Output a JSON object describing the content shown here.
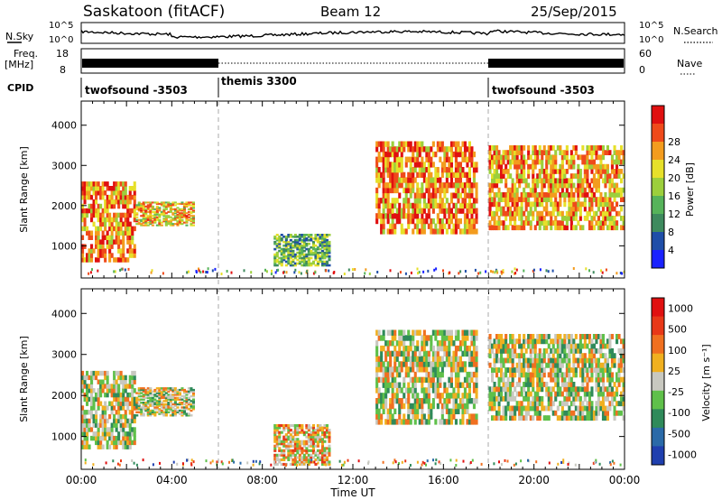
{
  "header": {
    "station": "Saskatoon (fitACF)",
    "beam": "Beam 12",
    "date": "25/Sep/2015"
  },
  "nsky_panel": {
    "left_label": "N.Sky",
    "right_label": "N.Search",
    "y_top": "10^5",
    "y_bottom": "10^0"
  },
  "freq_panel": {
    "left_label_1": "Freq.",
    "left_label_2": "[MHz]",
    "left_ticks": [
      "18",
      "8"
    ],
    "right_label": "Nave",
    "right_ticks": [
      "60",
      "0"
    ]
  },
  "cpid": {
    "label": "CPID",
    "segments": [
      {
        "name": "twofsound -3503",
        "start_hour": 0,
        "end_hour": 6
      },
      {
        "name": "themis 3300",
        "start_hour": 6,
        "end_hour": 18
      },
      {
        "name": "twofsound -3503",
        "start_hour": 18,
        "end_hour": 24
      }
    ]
  },
  "chart_data": [
    {
      "type": "heatmap",
      "title": "",
      "xlabel": "Time UT",
      "ylabel": "Slant Range [km]",
      "xlim": [
        0,
        24
      ],
      "ylim": [
        200,
        4600
      ],
      "xticks": [
        "00:00",
        "04:00",
        "08:00",
        "12:00",
        "16:00",
        "20:00",
        "00:00"
      ],
      "yticks": [
        1000,
        2000,
        3000,
        4000
      ],
      "colorbar": {
        "label": "Power [dB]",
        "ticks": [
          "4",
          "8",
          "12",
          "16",
          "20",
          "24",
          "28"
        ],
        "colors": [
          "#1a22ff",
          "#1f4ea8",
          "#3e8a5e",
          "#56b35a",
          "#9ccf3c",
          "#e6e02a",
          "#f39c1e",
          "#ef4a1a",
          "#e01010"
        ]
      },
      "regions": [
        {
          "t0": 0.0,
          "t1": 2.4,
          "r0": 600,
          "r1": 2600,
          "level": 0.75
        },
        {
          "t0": 2.4,
          "t1": 5.0,
          "r0": 1500,
          "r1": 2100,
          "level": 0.65
        },
        {
          "t0": 8.5,
          "t1": 11.0,
          "r0": 500,
          "r1": 1300,
          "level": 0.4
        },
        {
          "t0": 13.0,
          "t1": 17.5,
          "r0": 1300,
          "r1": 3600,
          "level": 0.75
        },
        {
          "t0": 18.0,
          "t1": 24.0,
          "r0": 1400,
          "r1": 3500,
          "level": 0.7
        }
      ]
    },
    {
      "type": "heatmap",
      "title": "",
      "xlabel": "Time UT",
      "ylabel": "Slant Range [km]",
      "xlim": [
        0,
        24
      ],
      "ylim": [
        200,
        4600
      ],
      "xticks": [
        "00:00",
        "04:00",
        "08:00",
        "12:00",
        "16:00",
        "20:00",
        "00:00"
      ],
      "yticks": [
        1000,
        2000,
        3000,
        4000
      ],
      "colorbar": {
        "label": "Velocity [m s⁻¹]",
        "ticks": [
          "1000",
          "500",
          "100",
          "25",
          "-25",
          "-100",
          "-500",
          "-1000"
        ],
        "colors": [
          "#1f3fae",
          "#2a6aa8",
          "#2f8a5a",
          "#5fc04a",
          "#c8c8c0",
          "#f0b020",
          "#f07020",
          "#e83818",
          "#e01010"
        ]
      },
      "regions": [
        {
          "t0": 0.0,
          "t1": 2.4,
          "r0": 700,
          "r1": 2600,
          "level": 0.5
        },
        {
          "t0": 2.4,
          "t1": 5.0,
          "r0": 1500,
          "r1": 2200,
          "level": 0.5
        },
        {
          "t0": 8.5,
          "t1": 11.0,
          "r0": 300,
          "r1": 1300,
          "level": 0.6
        },
        {
          "t0": 13.0,
          "t1": 17.5,
          "r0": 1300,
          "r1": 3600,
          "level": 0.5
        },
        {
          "t0": 18.0,
          "t1": 24.0,
          "r0": 1400,
          "r1": 3500,
          "level": 0.5
        }
      ]
    }
  ]
}
